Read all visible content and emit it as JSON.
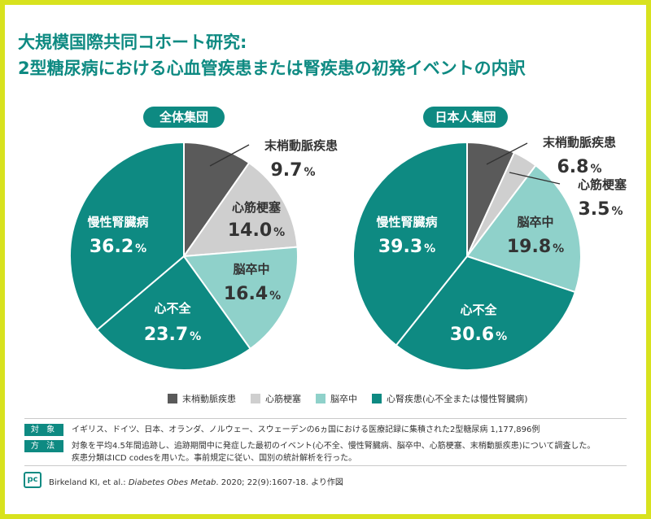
{
  "title": {
    "line1": "大規模国際共同コホート研究:",
    "line2": "2型糖尿病における心血管疾患または腎疾患の初発イベントの内訳"
  },
  "colors": {
    "border": "#d8e21e",
    "accent": "#0e8a82",
    "peripheral": "#5a5a5a",
    "mi": "#cfcfcf",
    "stroke": "#8fd1ca",
    "renal": "#0e8a82"
  },
  "chart_data": [
    {
      "type": "pie",
      "title": "全体集団",
      "slices": [
        {
          "label": "末梢動脈疾患",
          "value": 9.7,
          "display": "9.7",
          "pct": "%",
          "color": "#5a5a5a"
        },
        {
          "label": "心筋梗塞",
          "value": 14.0,
          "display": "14.0",
          "pct": "%",
          "color": "#cfcfcf"
        },
        {
          "label": "脳卒中",
          "value": 16.4,
          "display": "16.4",
          "pct": "%",
          "color": "#8fd1ca"
        },
        {
          "label": "心不全",
          "value": 23.7,
          "display": "23.7",
          "pct": "%",
          "color": "#0e8a82"
        },
        {
          "label": "慢性腎臓病",
          "value": 36.2,
          "display": "36.2",
          "pct": "%",
          "color": "#0e8a82"
        }
      ]
    },
    {
      "type": "pie",
      "title": "日本人集団",
      "slices": [
        {
          "label": "末梢動脈疾患",
          "value": 6.8,
          "display": "6.8",
          "pct": "%",
          "color": "#5a5a5a"
        },
        {
          "label": "心筋梗塞",
          "value": 3.5,
          "display": "3.5",
          "pct": "%",
          "color": "#cfcfcf"
        },
        {
          "label": "脳卒中",
          "value": 19.8,
          "display": "19.8",
          "pct": "%",
          "color": "#8fd1ca"
        },
        {
          "label": "心不全",
          "value": 30.6,
          "display": "30.6",
          "pct": "%",
          "color": "#0e8a82"
        },
        {
          "label": "慢性腎臓病",
          "value": 39.3,
          "display": "39.3",
          "pct": "%",
          "color": "#0e8a82"
        }
      ]
    }
  ],
  "legend": [
    {
      "label": "末梢動脈疾患",
      "color": "#5a5a5a"
    },
    {
      "label": "心筋梗塞",
      "color": "#cfcfcf"
    },
    {
      "label": "脳卒中",
      "color": "#8fd1ca"
    },
    {
      "label": "心腎疾患(心不全または慢性腎臓病)",
      "color": "#0e8a82"
    }
  ],
  "notes": {
    "target_tag": "対 象",
    "target_text": "イギリス、ドイツ、日本、オランダ、ノルウェー、スウェーデンの6ヵ国における医療記録に集積された2型糖尿病 1,177,896例",
    "method_tag": "方 法",
    "method_text1": "対象を平均4.5年間追跡し、追跡期間中に発症した最初のイベント(心不全、慢性腎臓病、脳卒中、心筋梗塞、末梢動脈疾患)について調査した。",
    "method_text2": "疾患分類はICD codesを用いた。事前規定に従い、国別の統計解析を行った。"
  },
  "citation": {
    "authors": "Birkeland KI, et al.: ",
    "journal": "Diabetes Obes Metab",
    "rest": ". 2020; 22(9):1607-18. より作図"
  },
  "logo": "pc"
}
